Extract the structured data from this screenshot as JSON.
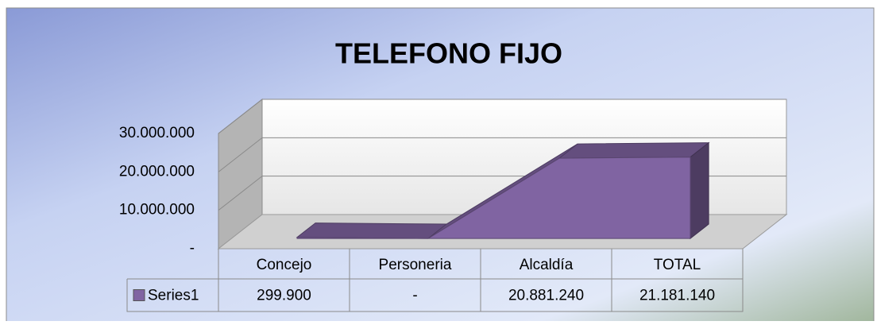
{
  "chart_data": {
    "type": "area3d",
    "title": "TELEFONO FIJO",
    "categories": [
      "Concejo",
      "Personeria",
      "Alcaldía",
      "TOTAL"
    ],
    "series": [
      {
        "name": "Series1",
        "color": "#8064a2",
        "values": [
          299900,
          0,
          20881240,
          21181140
        ],
        "value_labels": [
          "299.900",
          "-",
          "20.881.240",
          "21.181.140"
        ]
      }
    ],
    "ylim": [
      0,
      30000000
    ],
    "yticks": [
      {
        "value": 0,
        "label": "-"
      },
      {
        "value": 10000000,
        "label": "10.000.000"
      },
      {
        "value": 20000000,
        "label": "20.000.000"
      },
      {
        "value": 30000000,
        "label": "30.000.000"
      }
    ],
    "grid": true,
    "data_table": true
  }
}
